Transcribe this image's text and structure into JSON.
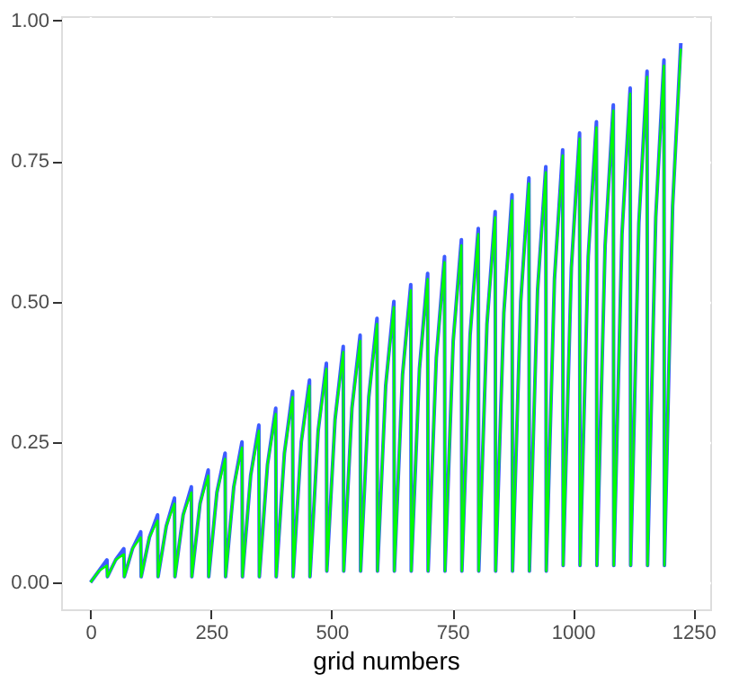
{
  "chart_data": {
    "type": "line",
    "xlabel": "grid numbers",
    "x": [
      0,
      17,
      34,
      35,
      52,
      69,
      70,
      87,
      104,
      105,
      122,
      139,
      140,
      157,
      174,
      175,
      192,
      209,
      210,
      227,
      244,
      245,
      262,
      279,
      280,
      297,
      314,
      315,
      332,
      349,
      350,
      367,
      384,
      385,
      402,
      419,
      420,
      437,
      454,
      455,
      472,
      489,
      490,
      507,
      524,
      525,
      542,
      559,
      560,
      577,
      594,
      595,
      612,
      629,
      630,
      647,
      664,
      665,
      682,
      699,
      700,
      717,
      734,
      735,
      752,
      769,
      770,
      787,
      804,
      805,
      822,
      839,
      840,
      857,
      874,
      875,
      892,
      909,
      910,
      927,
      944,
      945,
      962,
      979,
      980,
      997,
      1014,
      1015,
      1032,
      1049,
      1050,
      1067,
      1084,
      1085,
      1102,
      1119,
      1120,
      1137,
      1154,
      1155,
      1172,
      1189,
      1190,
      1207,
      1224
    ],
    "series": [
      {
        "color": "#3d5cff",
        "values": [
          0,
          0.02,
          0.04,
          0.01,
          0.04,
          0.06,
          0.01,
          0.06,
          0.09,
          0.01,
          0.08,
          0.12,
          0.01,
          0.1,
          0.15,
          0.01,
          0.12,
          0.17,
          0.01,
          0.14,
          0.2,
          0.01,
          0.16,
          0.23,
          0.01,
          0.17,
          0.25,
          0.01,
          0.19,
          0.28,
          0.01,
          0.21,
          0.31,
          0.01,
          0.23,
          0.34,
          0.01,
          0.25,
          0.36,
          0.01,
          0.27,
          0.39,
          0.02,
          0.29,
          0.42,
          0.02,
          0.31,
          0.44,
          0.02,
          0.33,
          0.47,
          0.02,
          0.35,
          0.5,
          0.02,
          0.37,
          0.53,
          0.02,
          0.38,
          0.55,
          0.02,
          0.4,
          0.58,
          0.02,
          0.43,
          0.61,
          0.02,
          0.44,
          0.63,
          0.02,
          0.46,
          0.66,
          0.02,
          0.48,
          0.69,
          0.02,
          0.5,
          0.72,
          0.02,
          0.52,
          0.74,
          0.02,
          0.54,
          0.77,
          0.03,
          0.56,
          0.8,
          0.03,
          0.58,
          0.82,
          0.03,
          0.6,
          0.85,
          0.03,
          0.62,
          0.88,
          0.03,
          0.64,
          0.91,
          0.03,
          0.65,
          0.93,
          0.03,
          0.67,
          0.96
        ]
      },
      {
        "color": "#00ff00",
        "values": [
          0,
          0.02,
          0.03,
          0.01,
          0.04,
          0.05,
          0.01,
          0.06,
          0.08,
          0.01,
          0.08,
          0.11,
          0.01,
          0.1,
          0.14,
          0.01,
          0.12,
          0.16,
          0.01,
          0.14,
          0.19,
          0.01,
          0.16,
          0.22,
          0.01,
          0.17,
          0.24,
          0.01,
          0.19,
          0.27,
          0.01,
          0.21,
          0.3,
          0.01,
          0.23,
          0.33,
          0.01,
          0.25,
          0.35,
          0.01,
          0.27,
          0.38,
          0.02,
          0.29,
          0.41,
          0.02,
          0.31,
          0.43,
          0.02,
          0.33,
          0.46,
          0.02,
          0.35,
          0.49,
          0.02,
          0.37,
          0.52,
          0.02,
          0.38,
          0.54,
          0.02,
          0.4,
          0.57,
          0.02,
          0.43,
          0.6,
          0.02,
          0.44,
          0.62,
          0.02,
          0.46,
          0.65,
          0.02,
          0.48,
          0.68,
          0.02,
          0.5,
          0.71,
          0.02,
          0.52,
          0.73,
          0.02,
          0.54,
          0.76,
          0.03,
          0.56,
          0.79,
          0.03,
          0.58,
          0.81,
          0.03,
          0.6,
          0.84,
          0.03,
          0.62,
          0.87,
          0.03,
          0.64,
          0.9,
          0.03,
          0.65,
          0.92,
          0.03,
          0.67,
          0.95
        ]
      }
    ],
    "xlim": [
      -61,
      1285
    ],
    "ylim": [
      -0.048,
      1.008
    ],
    "xticks": [
      0,
      250,
      500,
      750,
      1000,
      1250
    ],
    "yticks": [
      {
        "value": 0,
        "label": "0.00"
      },
      {
        "value": 0.25,
        "label": "0.25"
      },
      {
        "value": 0.5,
        "label": "0.50"
      },
      {
        "value": 0.75,
        "label": "0.75"
      },
      {
        "value": 1,
        "label": "1.00"
      }
    ],
    "grid": true,
    "marker": "none",
    "line_style": "solid"
  }
}
